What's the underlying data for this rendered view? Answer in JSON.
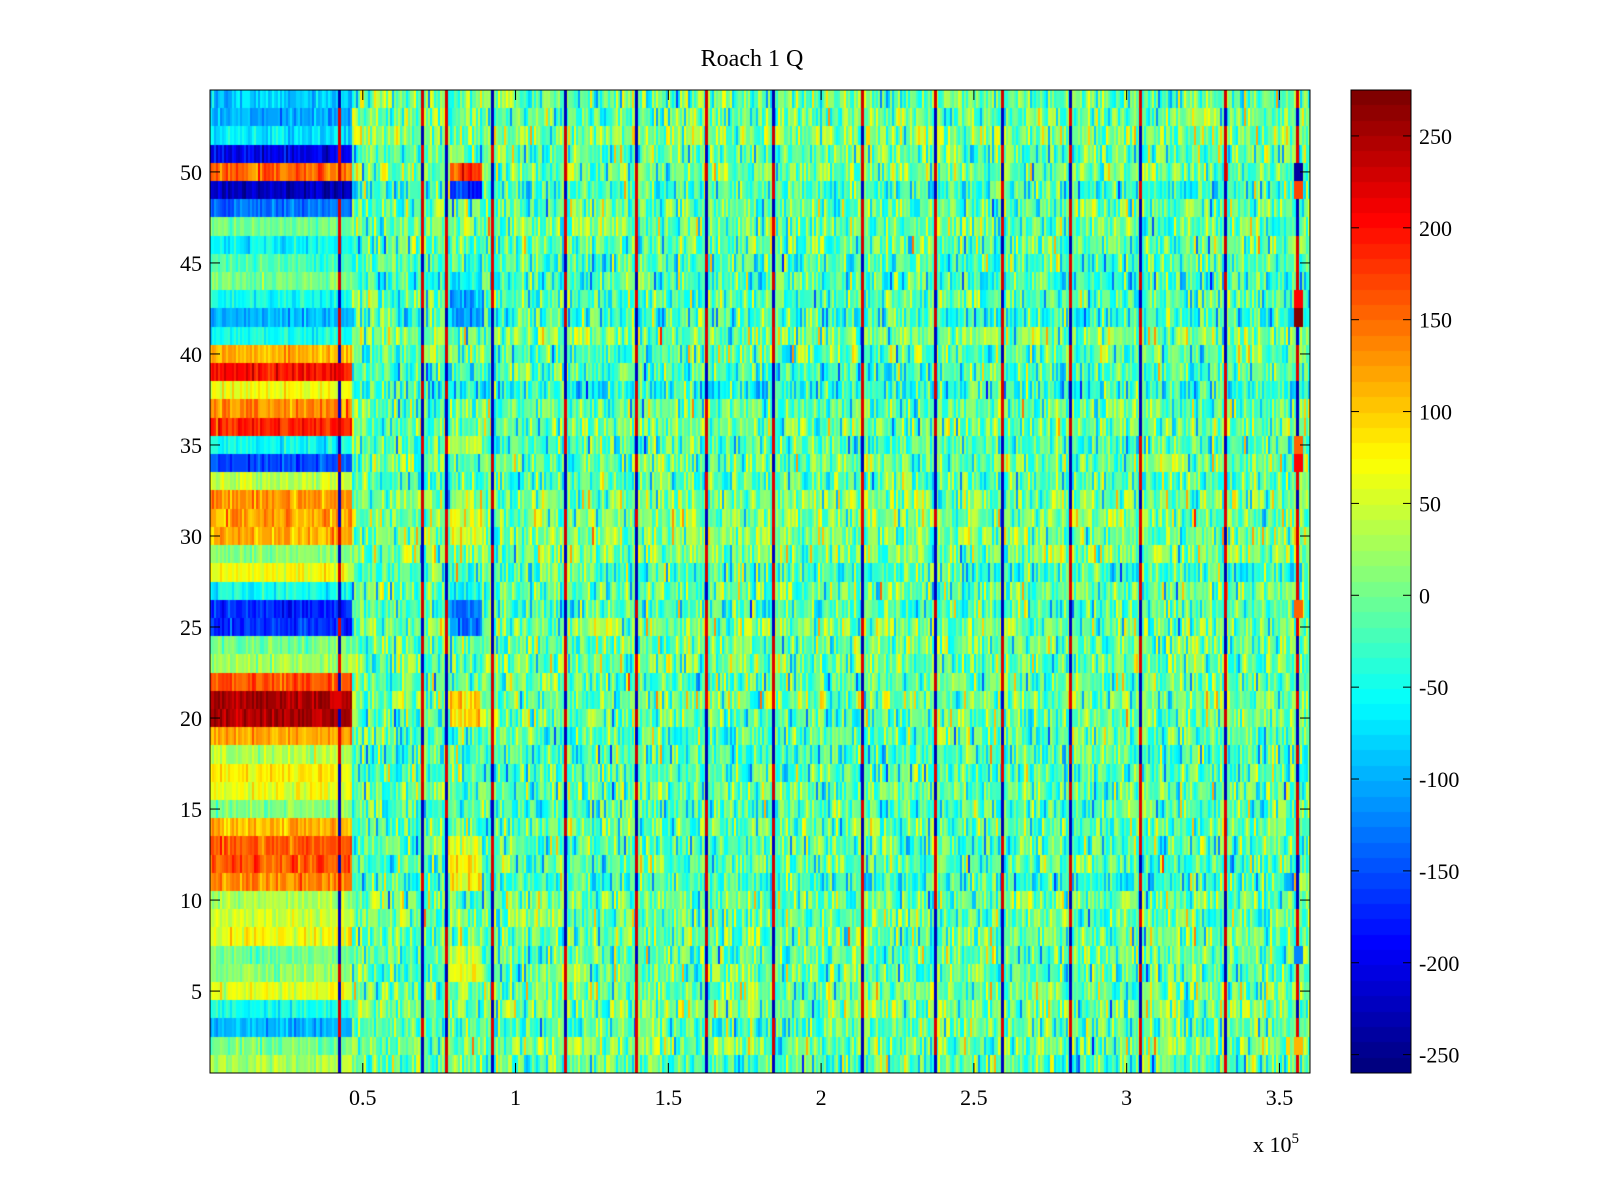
{
  "chart_data": {
    "type": "heatmap",
    "title": "Roach 1 Q",
    "xlabel": "",
    "ylabel": "",
    "x_exponent_label": "x 10",
    "x_exponent_power": "5",
    "xlim": [
      0,
      3.6
    ],
    "ylim": [
      0.5,
      54.5
    ],
    "rows": 54,
    "x_ticks": [
      0.5,
      1,
      1.5,
      2,
      2.5,
      3,
      3.5
    ],
    "x_tick_labels": [
      "0.5",
      "1",
      "1.5",
      "2",
      "2.5",
      "3",
      "3.5"
    ],
    "y_ticks": [
      5,
      10,
      15,
      20,
      25,
      30,
      35,
      40,
      45,
      50
    ],
    "y_tick_labels": [
      "5",
      "10",
      "15",
      "20",
      "25",
      "30",
      "35",
      "40",
      "45",
      "50"
    ],
    "colorbar": {
      "colormap": "jet",
      "clim": [
        -260,
        275
      ],
      "ticks": [
        -250,
        -200,
        -150,
        -100,
        -50,
        0,
        50,
        100,
        150,
        200,
        250
      ],
      "tick_labels": [
        "-250",
        "-200",
        "-150",
        "-100",
        "-50",
        "0",
        "50",
        "100",
        "150",
        "200",
        "250"
      ]
    },
    "initial_segment_end_x": 0.46,
    "initial_segment_row_values": [
      30,
      0,
      -100,
      -50,
      60,
      20,
      0,
      70,
      50,
      30,
      140,
      160,
      160,
      110,
      10,
      60,
      80,
      30,
      120,
      250,
      250,
      160,
      20,
      0,
      -170,
      -170,
      -50,
      70,
      10,
      120,
      120,
      130,
      40,
      -150,
      -60,
      190,
      130,
      70,
      200,
      110,
      -50,
      -100,
      -50,
      0,
      -20,
      -60,
      0,
      -130,
      -220,
      150,
      -200,
      -70,
      -100,
      -90
    ],
    "mid_segment_range_x": [
      0.78,
      0.89
    ],
    "mid_segment_row_values": {
      "6": 60,
      "7": 40,
      "11": 80,
      "12": 80,
      "13": 60,
      "20": 90,
      "21": 90,
      "25": -130,
      "26": -130,
      "27": -50,
      "30": 50,
      "31": 60,
      "35": 20,
      "42": -100,
      "43": -100,
      "44": -70,
      "49": -170,
      "50": 180
    },
    "vertical_lines_x": [
      0.42,
      0.69,
      0.77,
      0.92,
      1.16,
      1.39,
      1.62,
      1.84,
      2.13,
      2.37,
      2.59,
      2.81,
      3.04,
      3.32,
      3.555
    ],
    "right_edge_spots": [
      {
        "x": 3.56,
        "row": 50,
        "value": -240
      },
      {
        "x": 3.56,
        "row": 49,
        "value": 170
      },
      {
        "x": 3.56,
        "row": 42,
        "value": 275
      },
      {
        "x": 3.56,
        "row": 43,
        "value": 200
      },
      {
        "x": 3.56,
        "row": 34,
        "value": 200
      },
      {
        "x": 3.56,
        "row": 35,
        "value": 150
      },
      {
        "x": 3.56,
        "row": 26,
        "value": 150
      },
      {
        "x": 3.56,
        "row": 7,
        "value": -120
      },
      {
        "x": 3.56,
        "row": 2,
        "value": 110
      }
    ],
    "background_mean": -10,
    "background_noise": 45
  }
}
